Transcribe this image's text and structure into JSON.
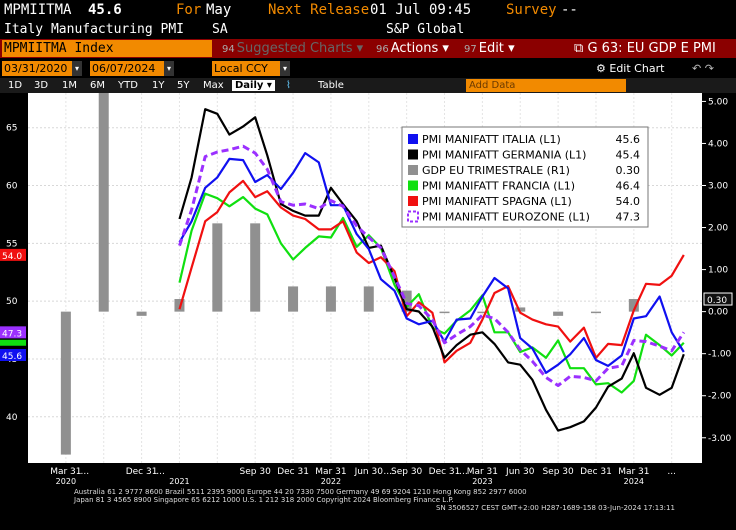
{
  "header": {
    "ticker": "MPMIITMA",
    "last_value": "45.6",
    "for_label": "For",
    "for_period": "May",
    "next_release_label": "Next Release",
    "next_release": "01 Jul 09:45",
    "survey_label": "Survey",
    "survey_value": "--",
    "description": "Italy Manufacturing PMI",
    "adjustment": "SA",
    "source": "S&P Global"
  },
  "toolbar": {
    "security": "MPMIITMA Index",
    "suggested_num": "94",
    "suggested": "Suggested Charts",
    "actions_num": "96",
    "actions": "Actions",
    "edit_num": "97",
    "edit": "Edit",
    "chart_id": "G 63: EU GDP E PMI"
  },
  "range": {
    "start": "03/31/2020",
    "end": "06/07/2024",
    "currency": "Local CCY",
    "edit_chart": "Edit Chart"
  },
  "periods": [
    "1D",
    "3D",
    "1M",
    "6M",
    "YTD",
    "1Y",
    "5Y",
    "Max"
  ],
  "frequency": "Daily",
  "table_label": "Table",
  "add_data": "Add Data",
  "footer": {
    "line1": "Australia 61 2 9777 8600 Brazil 5511 2395 9000 Europe 44 20 7330 7500 Germany 49 69 9204 1210 Hong Kong 852 2977 6000",
    "line2": "Japan 81 3 4565 8900        Singapore 65 6212 1000        U.S. 1 212 318 2000          Copyright 2024 Bloomberg Finance L.P.",
    "line3": "SN 3506527 CEST GMT+2:00 H287-1689-158 03-Jun-2024 17:13:11"
  },
  "colors": {
    "italia": "#1010f0",
    "germania": "#000000",
    "gdp": "#909090",
    "francia": "#10e010",
    "spagna": "#f01010",
    "eurozone": "#9b30ff",
    "chart_bg": "#ffffff",
    "accent": "#f28a00"
  },
  "chart_data": {
    "type": "line",
    "left_axis": {
      "ylim": [
        36,
        68
      ],
      "ticks": [
        40,
        45,
        50,
        55,
        60,
        65
      ]
    },
    "right_axis": {
      "ylim": [
        -3.6,
        5.2
      ],
      "ticks": [
        "5.00",
        "4.00",
        "3.00",
        "2.00",
        "1.00",
        "0.00",
        "-1.00",
        "-2.00",
        "-3.00"
      ]
    },
    "x_tick_labels": [
      "Mar 31",
      "...",
      "Dec 31",
      "...",
      "Sep 30",
      "Dec 31",
      "Mar 31",
      "Jun 30",
      "...",
      "Sep 30",
      "Dec 31",
      "...",
      "Mar 31",
      "Jun 30",
      "Sep 30",
      "Dec 31",
      "Mar 31",
      "..."
    ],
    "year_labels": [
      "2020",
      "2021",
      "2022",
      "2023",
      "2024"
    ],
    "legend": [
      {
        "name": "PMI MANIFATT ITALIA (L1)",
        "value": "45.6"
      },
      {
        "name": "PMI MANIFATT GERMANIA (L1)",
        "value": "45.4"
      },
      {
        "name": "GDP EU TRIMESTRALE (R1)",
        "value": "0.30"
      },
      {
        "name": "PMI MANIFATT FRANCIA (L1)",
        "value": "46.4"
      },
      {
        "name": "PMI MANIFATT SPAGNA (L1)",
        "value": "54.0"
      },
      {
        "name": "PMI MANIFATT EUROZONE (L1)",
        "value": "47.3"
      }
    ],
    "last_value_tags": [
      {
        "label": "54.0",
        "value": 54.0,
        "axis": "left",
        "color": "#f01010"
      },
      {
        "label": "47.3",
        "value": 47.3,
        "axis": "left",
        "color": "#9b30ff"
      },
      {
        "label": "45.6",
        "value": 45.6,
        "axis": "left",
        "color": "#1010f0"
      },
      {
        "label": "0.30",
        "value": 0.3,
        "axis": "right",
        "color": "#000000"
      }
    ],
    "gdp_bars": {
      "x": [
        2020.25,
        2020.5,
        2020.75,
        2021.0,
        2021.25,
        2021.5,
        2021.75,
        2022.0,
        2022.25,
        2022.5,
        2022.75,
        2023.0,
        2023.25,
        2023.5,
        2023.75,
        2024.0
      ],
      "values": [
        -3.4,
        11.6,
        -0.1,
        0.3,
        2.1,
        2.1,
        0.6,
        0.6,
        0.6,
        0.5,
        0.0,
        0.0,
        0.1,
        -0.1,
        0.0,
        0.3
      ]
    },
    "series": [
      {
        "name": "PMI MANIFATT ITALIA (L1)",
        "key": "italia",
        "x": [
          2021.0,
          2021.08,
          2021.17,
          2021.25,
          2021.33,
          2021.42,
          2021.5,
          2021.58,
          2021.67,
          2021.75,
          2021.83,
          2021.92,
          2022.0,
          2022.08,
          2022.17,
          2022.25,
          2022.33,
          2022.42,
          2022.5,
          2022.58,
          2022.67,
          2022.75,
          2022.83,
          2022.92,
          2023.0,
          2023.08,
          2023.17,
          2023.25,
          2023.33,
          2023.42,
          2023.5,
          2023.58,
          2023.67,
          2023.75,
          2023.83,
          2023.92,
          2024.0,
          2024.08,
          2024.17,
          2024.25,
          2024.33
        ],
        "y": [
          55.1,
          56.9,
          59.8,
          60.7,
          62.3,
          62.2,
          60.3,
          60.9,
          59.7,
          61.1,
          62.8,
          62.0,
          58.3,
          58.3,
          55.8,
          54.5,
          51.9,
          50.9,
          48.5,
          48.0,
          48.3,
          46.5,
          48.4,
          48.5,
          50.4,
          52.0,
          51.1,
          46.8,
          45.9,
          43.8,
          44.5,
          45.4,
          46.8,
          44.9,
          44.4,
          45.3,
          48.5,
          48.7,
          50.4,
          47.3,
          45.6
        ]
      },
      {
        "name": "PMI MANIFATT GERMANIA (L1)",
        "key": "germania",
        "x": [
          2021.0,
          2021.08,
          2021.17,
          2021.25,
          2021.33,
          2021.42,
          2021.5,
          2021.58,
          2021.67,
          2021.75,
          2021.83,
          2021.92,
          2022.0,
          2022.08,
          2022.17,
          2022.25,
          2022.33,
          2022.42,
          2022.5,
          2022.58,
          2022.67,
          2022.75,
          2022.83,
          2022.92,
          2023.0,
          2023.08,
          2023.17,
          2023.25,
          2023.33,
          2023.42,
          2023.5,
          2023.58,
          2023.67,
          2023.75,
          2023.83,
          2023.92,
          2024.0,
          2024.08,
          2024.17,
          2024.25,
          2024.33
        ],
        "y": [
          57.1,
          60.7,
          66.6,
          66.2,
          64.4,
          65.1,
          65.9,
          62.6,
          58.4,
          57.8,
          57.4,
          57.4,
          59.8,
          58.4,
          56.9,
          54.6,
          54.8,
          52.0,
          49.3,
          49.1,
          47.8,
          45.1,
          46.2,
          47.1,
          47.3,
          46.3,
          44.7,
          44.5,
          43.2,
          40.6,
          38.8,
          39.1,
          39.6,
          40.8,
          42.6,
          43.3,
          45.5,
          42.5,
          41.9,
          42.5,
          45.4
        ]
      },
      {
        "name": "PMI MANIFATT FRANCIA (L1)",
        "key": "francia",
        "x": [
          2021.0,
          2021.08,
          2021.17,
          2021.25,
          2021.33,
          2021.42,
          2021.5,
          2021.58,
          2021.67,
          2021.75,
          2021.83,
          2021.92,
          2022.0,
          2022.08,
          2022.17,
          2022.25,
          2022.33,
          2022.42,
          2022.5,
          2022.58,
          2022.67,
          2022.75,
          2022.83,
          2022.92,
          2023.0,
          2023.08,
          2023.17,
          2023.25,
          2023.33,
          2023.42,
          2023.5,
          2023.58,
          2023.67,
          2023.75,
          2023.83,
          2023.92,
          2024.0,
          2024.08,
          2024.17,
          2024.25,
          2024.33
        ],
        "y": [
          51.6,
          56.1,
          59.3,
          58.9,
          58.2,
          59.0,
          58.0,
          57.5,
          55.0,
          53.6,
          54.6,
          55.6,
          55.5,
          57.2,
          54.7,
          55.7,
          54.6,
          51.4,
          49.5,
          50.6,
          47.7,
          47.2,
          48.3,
          49.2,
          50.5,
          47.3,
          47.3,
          45.6,
          46.0,
          45.1,
          46.6,
          44.2,
          44.2,
          42.8,
          42.9,
          42.1,
          43.1,
          47.1,
          46.2,
          45.3,
          46.4
        ]
      },
      {
        "name": "PMI MANIFATT SPAGNA (L1)",
        "key": "spagna",
        "x": [
          2021.0,
          2021.08,
          2021.17,
          2021.25,
          2021.33,
          2021.42,
          2021.5,
          2021.58,
          2021.67,
          2021.75,
          2021.83,
          2021.92,
          2022.0,
          2022.08,
          2022.17,
          2022.25,
          2022.33,
          2022.42,
          2022.5,
          2022.58,
          2022.67,
          2022.75,
          2022.83,
          2022.92,
          2023.0,
          2023.08,
          2023.17,
          2023.25,
          2023.33,
          2023.42,
          2023.5,
          2023.58,
          2023.67,
          2023.75,
          2023.83,
          2023.92,
          2024.0,
          2024.08,
          2024.17,
          2024.25,
          2024.33
        ],
        "y": [
          49.3,
          52.9,
          56.9,
          57.7,
          59.4,
          60.4,
          59.0,
          59.5,
          58.1,
          57.4,
          57.1,
          56.2,
          56.2,
          56.9,
          54.2,
          53.3,
          53.8,
          52.6,
          48.7,
          49.9,
          49.0,
          44.7,
          45.7,
          46.4,
          48.4,
          50.7,
          51.3,
          49.0,
          48.4,
          48.0,
          47.8,
          46.5,
          47.7,
          45.1,
          46.3,
          46.2,
          49.2,
          51.5,
          51.4,
          52.2,
          54.0
        ]
      },
      {
        "name": "PMI MANIFATT EUROZONE (L1)",
        "key": "eurozone",
        "dashed": true,
        "x": [
          2021.0,
          2021.08,
          2021.17,
          2021.25,
          2021.33,
          2021.42,
          2021.5,
          2021.58,
          2021.67,
          2021.75,
          2021.83,
          2021.92,
          2022.0,
          2022.08,
          2022.17,
          2022.25,
          2022.33,
          2022.42,
          2022.5,
          2022.58,
          2022.67,
          2022.75,
          2022.83,
          2022.92,
          2023.0,
          2023.08,
          2023.17,
          2023.25,
          2023.33,
          2023.42,
          2023.5,
          2023.58,
          2023.67,
          2023.75,
          2023.83,
          2023.92,
          2024.0,
          2024.08,
          2024.17,
          2024.25,
          2024.33
        ],
        "y": [
          54.8,
          57.9,
          62.5,
          62.9,
          63.1,
          63.4,
          62.8,
          61.4,
          58.6,
          58.3,
          58.4,
          58.0,
          58.7,
          58.2,
          56.5,
          55.5,
          54.6,
          52.1,
          49.8,
          49.6,
          48.4,
          46.4,
          47.1,
          47.8,
          48.8,
          48.5,
          47.3,
          45.8,
          44.8,
          43.4,
          42.7,
          43.5,
          43.4,
          43.1,
          44.2,
          44.4,
          46.6,
          46.5,
          46.1,
          45.7,
          47.3
        ]
      }
    ]
  }
}
